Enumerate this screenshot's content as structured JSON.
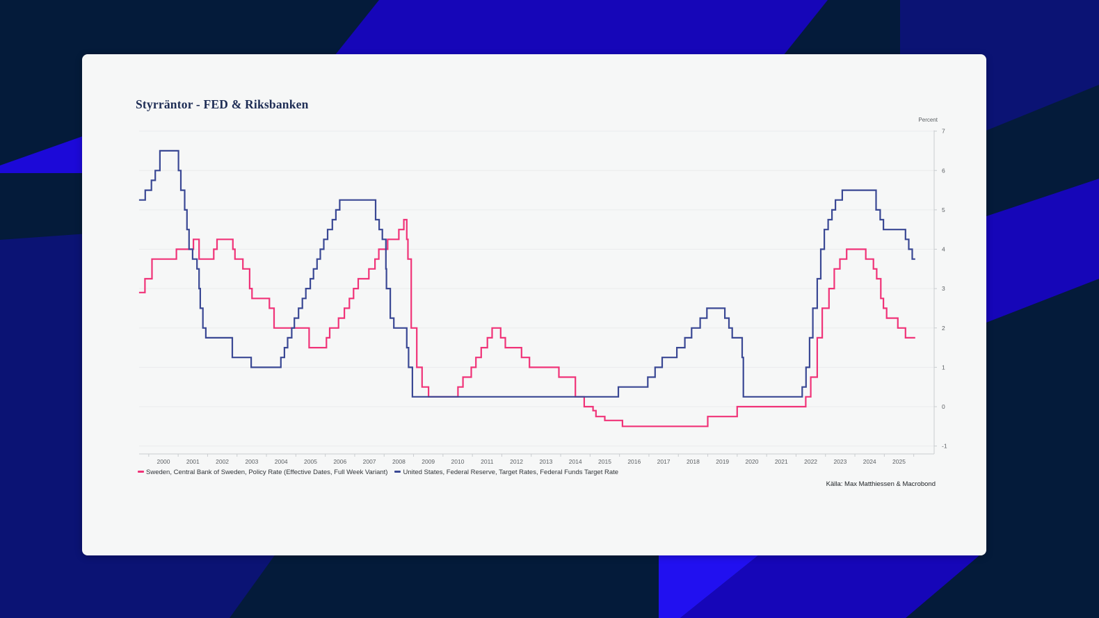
{
  "title": "Styrräntor - FED & Riksbanken",
  "source": "Källa: Max Matthiessen & Macrobond",
  "background_colors": {
    "base_navy": "#041B3A",
    "medium_navy": "#0B1374",
    "bright_blue": "#1606B8",
    "vivid_blue": "#2110F0",
    "left_wedge_blue": "#1C09D8",
    "card": "#F6F7F7"
  },
  "chart_data": {
    "type": "line",
    "step": true,
    "title": "Styrräntor - FED & Riksbanken",
    "ylabel": "Percent",
    "xlabel": "",
    "grid": true,
    "legend_position": "bottom",
    "xlim": [
      1999.67,
      2026.7
    ],
    "ylim": [
      -1.2,
      7
    ],
    "yticks": [
      7,
      6,
      5,
      4,
      3,
      2,
      1,
      0,
      -1
    ],
    "year_ticks": [
      2000,
      2001,
      2002,
      2003,
      2004,
      2005,
      2006,
      2007,
      2008,
      2009,
      2010,
      2011,
      2012,
      2013,
      2014,
      2015,
      2016,
      2017,
      2018,
      2019,
      2020,
      2021,
      2022,
      2023,
      2024,
      2025,
      2026
    ],
    "year_labels": [
      "2000",
      "2001",
      "2002",
      "2003",
      "2004",
      "2005",
      "2006",
      "2007",
      "2008",
      "2009",
      "2010",
      "2011",
      "2012",
      "2013",
      "2014",
      "2015",
      "2016",
      "2017",
      "2018",
      "2019",
      "2020",
      "2021",
      "2022",
      "2023",
      "2024",
      "2025"
    ],
    "x_end": 2026.05,
    "axis_color": "#C9CCCF",
    "grid_color": "#EAEBEC",
    "tick_label_color": "#5A5E62",
    "series": [
      {
        "name": "Sweden, Central Bank of Sweden, Policy Rate (Effective Dates, Full Week Variant)",
        "color": "#F03378",
        "points": [
          [
            1999.67,
            2.9
          ],
          [
            1999.87,
            3.25
          ],
          [
            2000.11,
            3.75
          ],
          [
            2000.94,
            4.0
          ],
          [
            2001.52,
            4.25
          ],
          [
            2001.71,
            3.75
          ],
          [
            2002.21,
            4.0
          ],
          [
            2002.32,
            4.25
          ],
          [
            2002.86,
            4.0
          ],
          [
            2002.93,
            3.75
          ],
          [
            2003.2,
            3.5
          ],
          [
            2003.43,
            3.0
          ],
          [
            2003.51,
            2.75
          ],
          [
            2004.1,
            2.5
          ],
          [
            2004.26,
            2.0
          ],
          [
            2005.45,
            1.5
          ],
          [
            2006.04,
            1.75
          ],
          [
            2006.15,
            2.0
          ],
          [
            2006.45,
            2.25
          ],
          [
            2006.65,
            2.5
          ],
          [
            2006.82,
            2.75
          ],
          [
            2006.96,
            3.0
          ],
          [
            2007.12,
            3.25
          ],
          [
            2007.48,
            3.5
          ],
          [
            2007.69,
            3.75
          ],
          [
            2007.82,
            4.0
          ],
          [
            2008.12,
            4.25
          ],
          [
            2008.5,
            4.5
          ],
          [
            2008.67,
            4.75
          ],
          [
            2008.77,
            4.25
          ],
          [
            2008.81,
            3.75
          ],
          [
            2008.92,
            2.0
          ],
          [
            2009.11,
            1.0
          ],
          [
            2009.29,
            0.5
          ],
          [
            2009.51,
            0.25
          ],
          [
            2010.51,
            0.5
          ],
          [
            2010.68,
            0.75
          ],
          [
            2010.96,
            1.0
          ],
          [
            2011.12,
            1.25
          ],
          [
            2011.3,
            1.5
          ],
          [
            2011.51,
            1.75
          ],
          [
            2011.67,
            2.0
          ],
          [
            2011.96,
            1.75
          ],
          [
            2012.12,
            1.5
          ],
          [
            2012.67,
            1.25
          ],
          [
            2012.94,
            1.0
          ],
          [
            2013.94,
            0.75
          ],
          [
            2014.5,
            0.25
          ],
          [
            2014.8,
            0.0
          ],
          [
            2015.1,
            -0.1
          ],
          [
            2015.2,
            -0.25
          ],
          [
            2015.5,
            -0.35
          ],
          [
            2016.1,
            -0.5
          ],
          [
            2019.0,
            -0.25
          ],
          [
            2020.0,
            0.0
          ],
          [
            2022.33,
            0.25
          ],
          [
            2022.5,
            0.75
          ],
          [
            2022.72,
            1.75
          ],
          [
            2022.89,
            2.5
          ],
          [
            2023.12,
            3.0
          ],
          [
            2023.3,
            3.5
          ],
          [
            2023.49,
            3.75
          ],
          [
            2023.72,
            4.0
          ],
          [
            2024.37,
            3.75
          ],
          [
            2024.63,
            3.5
          ],
          [
            2024.74,
            3.25
          ],
          [
            2024.88,
            2.75
          ],
          [
            2024.97,
            2.5
          ],
          [
            2025.08,
            2.25
          ],
          [
            2025.46,
            2.0
          ],
          [
            2025.72,
            1.75
          ]
        ]
      },
      {
        "name": "United States, Federal Reserve, Target Rates, Federal Funds Target Rate",
        "color": "#3A4894",
        "points": [
          [
            1999.67,
            5.25
          ],
          [
            1999.88,
            5.5
          ],
          [
            2000.09,
            5.75
          ],
          [
            2000.22,
            6.0
          ],
          [
            2000.38,
            6.5
          ],
          [
            2001.01,
            6.0
          ],
          [
            2001.09,
            5.5
          ],
          [
            2001.22,
            5.0
          ],
          [
            2001.3,
            4.5
          ],
          [
            2001.37,
            4.0
          ],
          [
            2001.49,
            3.75
          ],
          [
            2001.64,
            3.5
          ],
          [
            2001.71,
            3.0
          ],
          [
            2001.75,
            2.5
          ],
          [
            2001.84,
            2.0
          ],
          [
            2001.94,
            1.75
          ],
          [
            2002.84,
            1.25
          ],
          [
            2003.48,
            1.0
          ],
          [
            2004.49,
            1.25
          ],
          [
            2004.61,
            1.5
          ],
          [
            2004.72,
            1.75
          ],
          [
            2004.86,
            2.0
          ],
          [
            2004.95,
            2.25
          ],
          [
            2005.09,
            2.5
          ],
          [
            2005.22,
            2.75
          ],
          [
            2005.34,
            3.0
          ],
          [
            2005.49,
            3.25
          ],
          [
            2005.6,
            3.5
          ],
          [
            2005.72,
            3.75
          ],
          [
            2005.83,
            4.0
          ],
          [
            2005.95,
            4.25
          ],
          [
            2006.08,
            4.5
          ],
          [
            2006.24,
            4.75
          ],
          [
            2006.36,
            5.0
          ],
          [
            2006.49,
            5.25
          ],
          [
            2007.71,
            4.75
          ],
          [
            2007.83,
            4.5
          ],
          [
            2007.94,
            4.25
          ],
          [
            2008.06,
            3.5
          ],
          [
            2008.08,
            3.0
          ],
          [
            2008.21,
            2.25
          ],
          [
            2008.33,
            2.0
          ],
          [
            2008.77,
            1.5
          ],
          [
            2008.83,
            1.0
          ],
          [
            2008.96,
            0.25
          ],
          [
            2015.96,
            0.5
          ],
          [
            2016.96,
            0.75
          ],
          [
            2017.21,
            1.0
          ],
          [
            2017.45,
            1.25
          ],
          [
            2017.95,
            1.5
          ],
          [
            2018.22,
            1.75
          ],
          [
            2018.45,
            2.0
          ],
          [
            2018.74,
            2.25
          ],
          [
            2018.97,
            2.5
          ],
          [
            2019.58,
            2.25
          ],
          [
            2019.72,
            2.0
          ],
          [
            2019.83,
            1.75
          ],
          [
            2020.17,
            1.25
          ],
          [
            2020.21,
            0.25
          ],
          [
            2022.21,
            0.5
          ],
          [
            2022.34,
            1.0
          ],
          [
            2022.46,
            1.75
          ],
          [
            2022.57,
            2.5
          ],
          [
            2022.72,
            3.25
          ],
          [
            2022.84,
            4.0
          ],
          [
            2022.96,
            4.5
          ],
          [
            2023.09,
            4.75
          ],
          [
            2023.22,
            5.0
          ],
          [
            2023.34,
            5.25
          ],
          [
            2023.57,
            5.5
          ],
          [
            2024.72,
            5.0
          ],
          [
            2024.86,
            4.75
          ],
          [
            2024.97,
            4.5
          ],
          [
            2025.72,
            4.25
          ],
          [
            2025.83,
            4.0
          ],
          [
            2025.95,
            3.75
          ]
        ]
      }
    ]
  }
}
